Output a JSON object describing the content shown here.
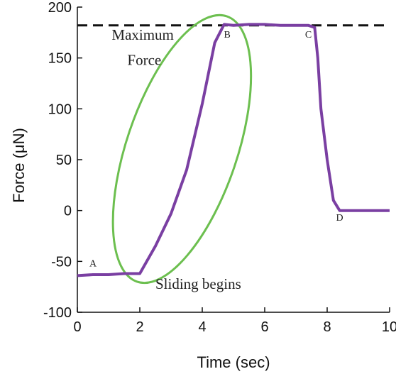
{
  "chart_data": {
    "type": "line",
    "xlabel": "Time (sec)",
    "ylabel": "Force (μN)",
    "xlim": [
      0,
      10
    ],
    "ylim": [
      -100,
      200
    ],
    "xticks": [
      "0",
      "2",
      "4",
      "6",
      "8",
      "10"
    ],
    "yticks": [
      "-100",
      "-50",
      "0",
      "50",
      "100",
      "150",
      "200"
    ],
    "grid": false,
    "colors": {
      "line": "#7a3fa2",
      "ellipse": "#6cbf4f",
      "reference": "#111111"
    },
    "series": [
      {
        "x": [
          0,
          0.5,
          1.0,
          1.5,
          2.0,
          2.5,
          3.0,
          3.5,
          4.0,
          4.4,
          4.7,
          5.0,
          5.5,
          6.0,
          6.5,
          7.0,
          7.4,
          7.6,
          7.7,
          7.8,
          8.0,
          8.2,
          8.4,
          8.6,
          9.0,
          9.5,
          10.0
        ],
        "y": [
          -64,
          -63,
          -63,
          -62,
          -62,
          -35,
          -3,
          40,
          105,
          165,
          183,
          182,
          183,
          183,
          182,
          182,
          182,
          180,
          150,
          100,
          50,
          10,
          0,
          0,
          0,
          0,
          0
        ]
      }
    ],
    "reference_line": {
      "y": 182,
      "style": "dashed"
    },
    "annotations": [
      {
        "text": "A",
        "x": 0.5,
        "y": -55
      },
      {
        "text": "B",
        "x": 4.8,
        "y": 170
      },
      {
        "text": "C",
        "x": 7.4,
        "y": 170
      },
      {
        "text": "D",
        "x": 8.4,
        "y": -10
      },
      {
        "text": "Maximum",
        "x": 1.1,
        "y": 168
      },
      {
        "text": "Force",
        "x": 1.6,
        "y": 143
      },
      {
        "text": "Sliding begins",
        "x": 2.5,
        "y": -77
      }
    ]
  }
}
